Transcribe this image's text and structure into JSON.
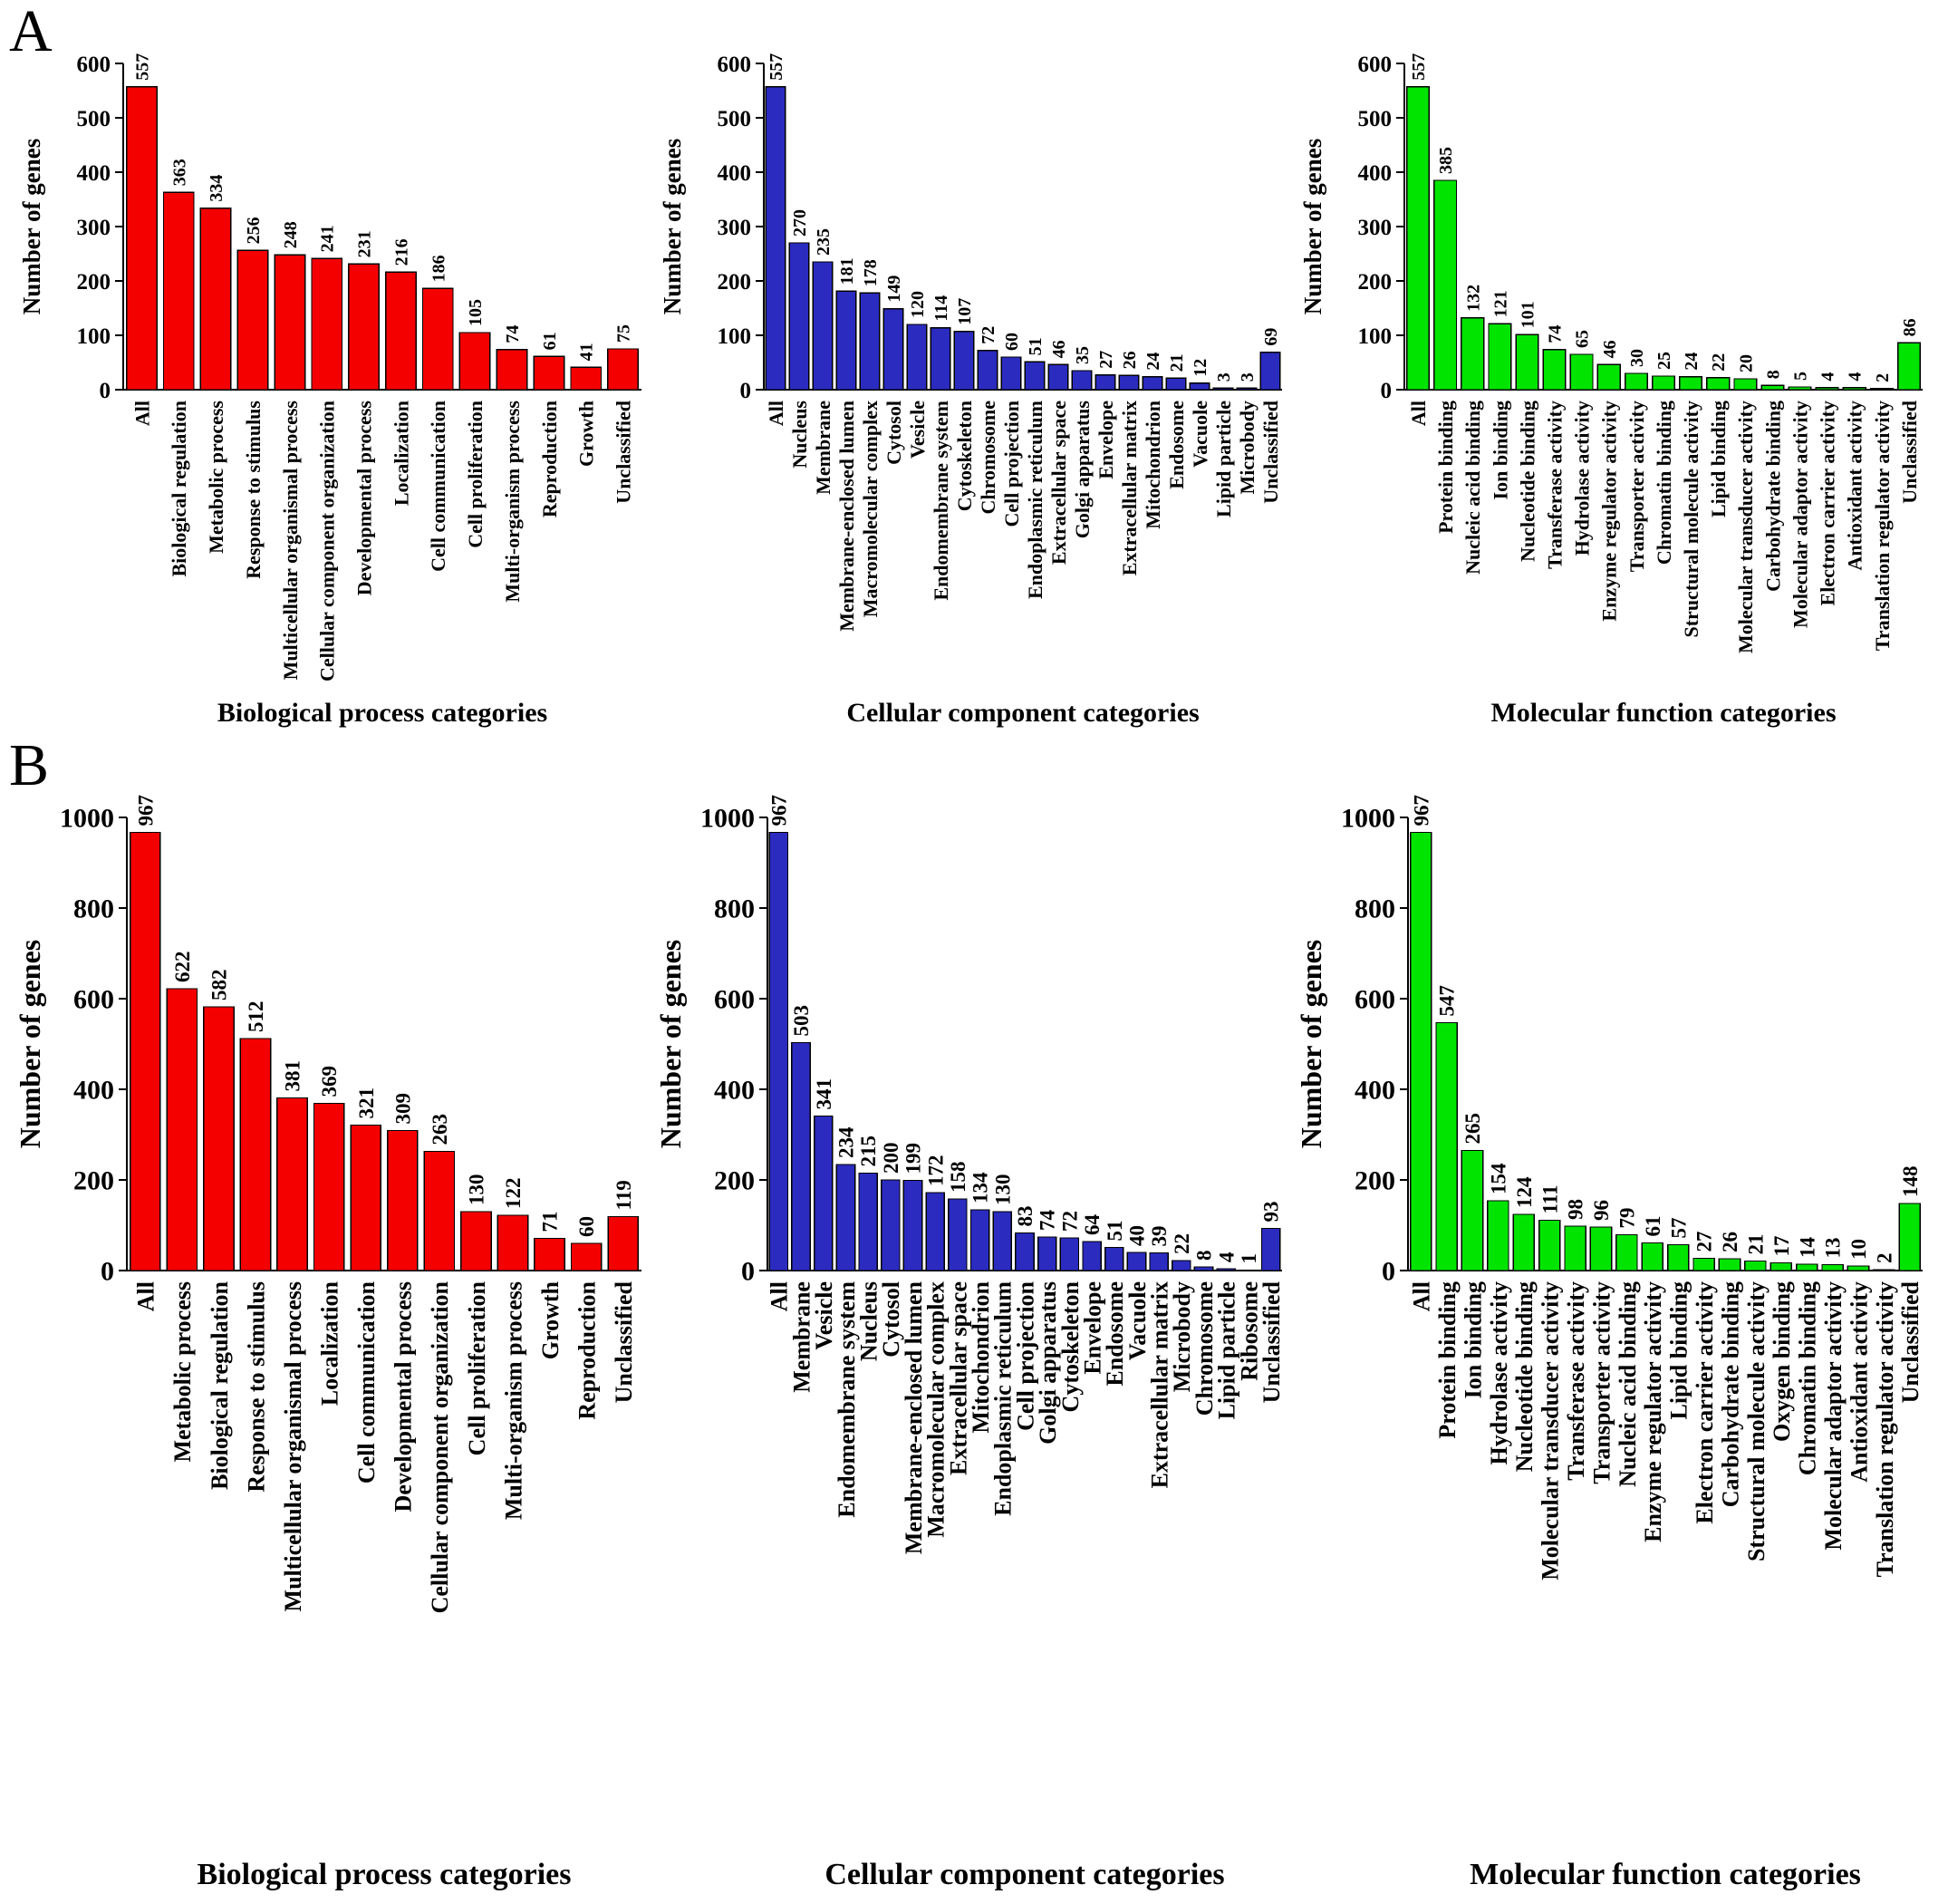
{
  "panels": [
    {
      "label": "A"
    },
    {
      "label": "B"
    }
  ],
  "axis": {
    "ylabel": "Number of genes"
  },
  "colors": {
    "biological_process": "#F40000",
    "cellular_component": "#2B2BC0",
    "molecular_function": "#00E400"
  },
  "chart_data": [
    {
      "panel": "A",
      "type": "bar",
      "title": "Biological process categories",
      "xlabel": "",
      "ylabel": "Number of genes",
      "ylim": [
        0,
        600
      ],
      "ytick_step": 100,
      "grid": false,
      "legend": "none",
      "color": "#F40000",
      "categories": [
        "All",
        "Biological regulation",
        "Metabolic process",
        "Response to stimulus",
        "Multicellular organismal process",
        "Cellular component organization",
        "Developmental process",
        "Localization",
        "Cell communication",
        "Cell proliferation",
        "Multi-organism process",
        "Reproduction",
        "Growth",
        "Unclassified"
      ],
      "values": [
        557,
        363,
        334,
        256,
        248,
        241,
        231,
        216,
        186,
        105,
        74,
        61,
        41,
        75
      ]
    },
    {
      "panel": "A",
      "type": "bar",
      "title": "Cellular component categories",
      "xlabel": "",
      "ylabel": "Number of genes",
      "ylim": [
        0,
        600
      ],
      "ytick_step": 100,
      "grid": false,
      "legend": "none",
      "color": "#2B2BC0",
      "categories": [
        "All",
        "Nucleus",
        "Membrane",
        "Membrane-enclosed lumen",
        "Macromolecular complex",
        "Cytosol",
        "Vesicle",
        "Endomembrane system",
        "Cytoskeleton",
        "Chromosome",
        "Cell projection",
        "Endoplasmic reticulum",
        "Extracellular space",
        "Golgi apparatus",
        "Envelope",
        "Extracellular matrix",
        "Mitochondrion",
        "Endosome",
        "Vacuole",
        "Lipid particle",
        "Microbody",
        "Unclassified"
      ],
      "values": [
        557,
        270,
        235,
        181,
        178,
        149,
        120,
        114,
        107,
        72,
        60,
        51,
        46,
        35,
        27,
        26,
        24,
        21,
        12,
        3,
        3,
        69
      ]
    },
    {
      "panel": "A",
      "type": "bar",
      "title": "Molecular function categories",
      "xlabel": "",
      "ylabel": "Number of genes",
      "ylim": [
        0,
        600
      ],
      "ytick_step": 100,
      "grid": false,
      "legend": "none",
      "color": "#00E400",
      "categories": [
        "All",
        "Protein binding",
        "Nucleic acid binding",
        "Ion binding",
        "Nucleotide binding",
        "Transferase activity",
        "Hydrolase activity",
        "Enzyme regulator activity",
        "Transporter activity",
        "Chromatin binding",
        "Structural molecule activity",
        "Lipid binding",
        "Molecular transducer activity",
        "Carbohydrate binding",
        "Molecular adaptor activity",
        "Electron carrier activity",
        "Antioxidant activity",
        "Translation regulator activity",
        "Unclassified"
      ],
      "values": [
        557,
        385,
        132,
        121,
        101,
        74,
        65,
        46,
        30,
        25,
        24,
        22,
        20,
        8,
        5,
        4,
        4,
        2,
        86
      ]
    },
    {
      "panel": "B",
      "type": "bar",
      "title": "Biological process categories",
      "xlabel": "",
      "ylabel": "Number of genes",
      "ylim": [
        0,
        1000
      ],
      "ytick_step": 200,
      "grid": false,
      "legend": "none",
      "color": "#F40000",
      "categories": [
        "All",
        "Metabolic process",
        "Biological regulation",
        "Response to stimulus",
        "Multicellular organismal process",
        "Localization",
        "Cell communication",
        "Developmental process",
        "Cellular component organization",
        "Cell proliferation",
        "Multi-organism process",
        "Growth",
        "Reproduction",
        "Unclassified"
      ],
      "values": [
        967,
        622,
        582,
        512,
        381,
        369,
        321,
        309,
        263,
        130,
        122,
        71,
        60,
        119
      ]
    },
    {
      "panel": "B",
      "type": "bar",
      "title": "Cellular component categories",
      "xlabel": "",
      "ylabel": "Number of genes",
      "ylim": [
        0,
        1000
      ],
      "ytick_step": 200,
      "grid": false,
      "legend": "none",
      "color": "#2B2BC0",
      "categories": [
        "All",
        "Membrane",
        "Vesicle",
        "Endomembrane system",
        "Nucleus",
        "Cytosol",
        "Membrane-enclosed lumen",
        "Macromolecular complex",
        "Extracellular space",
        "Mitochondrion",
        "Endoplasmic reticulum",
        "Cell projection",
        "Golgi apparatus",
        "Cytoskeleton",
        "Envelope",
        "Endosome",
        "Vacuole",
        "Extracellular matrix",
        "Microbody",
        "Chromosome",
        "Lipid particle",
        "Ribosome",
        "Unclassified"
      ],
      "values": [
        967,
        503,
        341,
        234,
        215,
        200,
        199,
        172,
        158,
        134,
        130,
        83,
        74,
        72,
        64,
        51,
        40,
        39,
        22,
        8,
        4,
        1,
        93
      ]
    },
    {
      "panel": "B",
      "type": "bar",
      "title": "Molecular function categories",
      "xlabel": "",
      "ylabel": "Number of genes",
      "ylim": [
        0,
        1000
      ],
      "ytick_step": 200,
      "grid": false,
      "legend": "none",
      "color": "#00E400",
      "categories": [
        "All",
        "Protein binding",
        "Ion binding",
        "Hydrolase activity",
        "Nucleotide binding",
        "Molecular transducer activity",
        "Transferase activity",
        "Transporter activity",
        "Nucleic acid binding",
        "Enzyme regulator activity",
        "Lipid binding",
        "Electron carrier activity",
        "Carbohydrate binding",
        "Structural molecule activity",
        "Oxygen binding",
        "Chromatin binding",
        "Molecular adaptor activity",
        "Antioxidant activity",
        "Translation regulator activity",
        "Unclassified"
      ],
      "values": [
        967,
        547,
        265,
        154,
        124,
        111,
        98,
        96,
        79,
        61,
        57,
        27,
        26,
        21,
        17,
        14,
        13,
        10,
        2,
        148
      ]
    }
  ]
}
